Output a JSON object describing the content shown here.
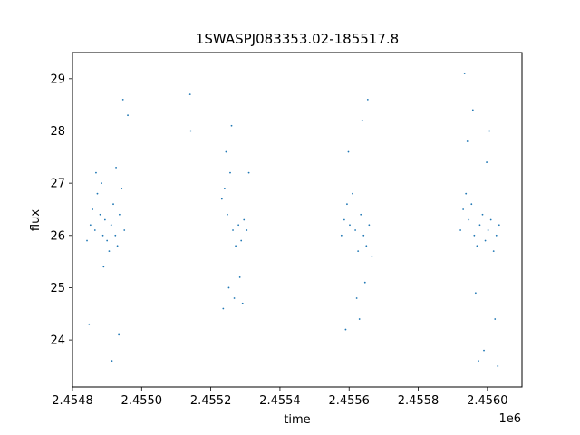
{
  "chart_data": {
    "type": "scatter",
    "title": "1SWASPJ083353.02-185517.8",
    "xlabel": "time",
    "ylabel": "flux",
    "x_offset_label": "1e6",
    "xlim": [
      2454800,
      2456100
    ],
    "ylim": [
      23.1,
      29.5
    ],
    "x_ticks": [
      2454800,
      2455000,
      2455200,
      2455400,
      2455600,
      2455800,
      2456000
    ],
    "x_tick_labels": [
      "2.4548",
      "2.4550",
      "2.4552",
      "2.4554",
      "2.4556",
      "2.4558",
      "2.4560"
    ],
    "y_ticks": [
      24,
      25,
      26,
      27,
      28,
      29
    ],
    "y_tick_labels": [
      "24",
      "25",
      "26",
      "27",
      "28",
      "29"
    ],
    "grid": false,
    "legend": "none",
    "marker_color": "#1f77b4",
    "series": [
      {
        "x": [
          2454842,
          2454852,
          2454858,
          2454865,
          2454872,
          2454880,
          2454888,
          2454894,
          2454900,
          2454906,
          2454912,
          2454918,
          2454924,
          2454930,
          2454936,
          2454942,
          2454950,
          2454848,
          2454868,
          2454890,
          2454914,
          2454934,
          2454946,
          2454884,
          2454926,
          2454960
        ],
        "y": [
          25.9,
          26.2,
          26.5,
          26.1,
          26.8,
          26.4,
          26.0,
          26.3,
          25.9,
          25.7,
          26.2,
          26.6,
          26.0,
          25.8,
          26.4,
          26.9,
          26.1,
          24.3,
          27.2,
          25.4,
          23.6,
          24.1,
          28.6,
          27.0,
          27.3,
          28.3
        ]
      },
      {
        "x": [
          2455232,
          2455240,
          2455248,
          2455256,
          2455264,
          2455272,
          2455280,
          2455288,
          2455296,
          2455304,
          2455244,
          2455252,
          2455268,
          2455284,
          2455236,
          2455260,
          2455292,
          2455140,
          2455142,
          2455310
        ],
        "y": [
          26.7,
          26.9,
          26.4,
          27.2,
          26.1,
          25.8,
          26.2,
          25.9,
          26.3,
          26.1,
          27.6,
          25.0,
          24.8,
          25.2,
          24.6,
          28.1,
          24.7,
          28.7,
          28.0,
          27.2
        ]
      },
      {
        "x": [
          2455578,
          2455586,
          2455594,
          2455602,
          2455610,
          2455618,
          2455626,
          2455634,
          2455642,
          2455650,
          2455658,
          2455666,
          2455598,
          2455622,
          2455638,
          2455654,
          2455590,
          2455630,
          2455646
        ],
        "y": [
          26.0,
          26.3,
          26.6,
          26.2,
          26.8,
          26.1,
          25.7,
          26.4,
          26.0,
          25.8,
          26.2,
          25.6,
          27.6,
          24.8,
          28.2,
          28.6,
          24.2,
          24.4,
          25.1
        ]
      },
      {
        "x": [
          2455922,
          2455930,
          2455938,
          2455946,
          2455954,
          2455962,
          2455970,
          2455978,
          2455986,
          2455994,
          2456002,
          2456010,
          2456018,
          2456026,
          2456034,
          2455934,
          2455958,
          2455974,
          2455990,
          2456006,
          2456022,
          2455942,
          2455966,
          2455998,
          2456030
        ],
        "y": [
          26.1,
          26.5,
          26.8,
          26.3,
          26.6,
          26.0,
          25.8,
          26.2,
          26.4,
          25.9,
          26.1,
          26.3,
          25.7,
          26.0,
          26.2,
          29.1,
          28.4,
          23.6,
          23.8,
          28.0,
          24.4,
          27.8,
          24.9,
          27.4,
          23.5
        ]
      }
    ]
  }
}
